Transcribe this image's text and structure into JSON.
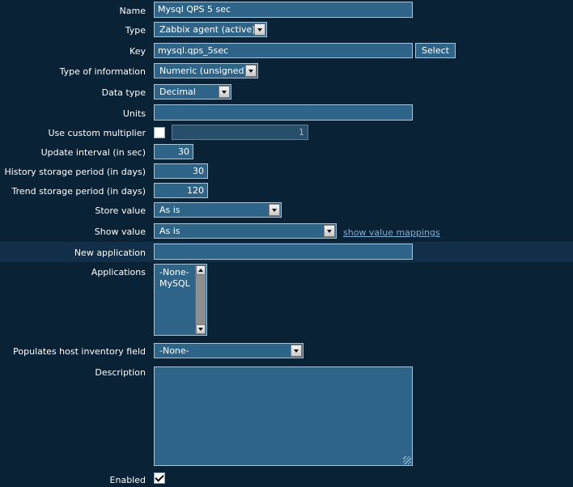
{
  "form": {
    "name": {
      "label": "Name",
      "value": "Mysql QPS 5 sec"
    },
    "type": {
      "label": "Type",
      "value": "Zabbix agent (active)"
    },
    "key": {
      "label": "Key",
      "value": "mysql.qps_5sec",
      "select_label": "Select"
    },
    "type_of_information": {
      "label": "Type of information",
      "value": "Numeric (unsigned)"
    },
    "data_type": {
      "label": "Data type",
      "value": "Decimal"
    },
    "units": {
      "label": "Units",
      "value": ""
    },
    "custom_multiplier": {
      "label": "Use custom multiplier",
      "checked": false,
      "value": "1"
    },
    "update_interval": {
      "label": "Update interval (in sec)",
      "value": "30"
    },
    "history_period": {
      "label": "History storage period (in days)",
      "value": "30"
    },
    "trend_period": {
      "label": "Trend storage period (in days)",
      "value": "120"
    },
    "store_value": {
      "label": "Store value",
      "value": "As is"
    },
    "show_value": {
      "label": "Show value",
      "value": "As is",
      "link": "show value mappings"
    },
    "new_application": {
      "label": "New application",
      "value": ""
    },
    "applications": {
      "label": "Applications",
      "items": [
        "-None-",
        "MySQL"
      ]
    },
    "inventory_field": {
      "label": "Populates host inventory field",
      "value": "-None-"
    },
    "description": {
      "label": "Description",
      "value": ""
    },
    "enabled": {
      "label": "Enabled",
      "checked": true
    }
  }
}
